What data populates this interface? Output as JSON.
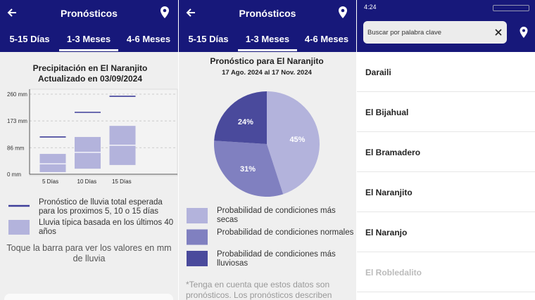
{
  "screens": [
    {
      "header": {
        "title": "Pronósticos"
      },
      "tabs": [
        "5-15 Días",
        "1-3 Meses",
        "4-6 Meses"
      ],
      "chart": {
        "type": "box",
        "title": "Precipitación en El Naranjito",
        "subtitle": "Actualizado en 03/09/2024",
        "categories": [
          "5 Días",
          "10 Días",
          "15 Días"
        ],
        "typical": {
          "low": [
            7,
            18,
            30
          ],
          "median": [
            34,
            71,
            94
          ],
          "high": [
            66,
            121,
            157
          ],
          "color": "#b3b3dc"
        },
        "forecast": {
          "values": [
            121,
            201,
            253
          ],
          "color": "#3f3f9a"
        },
        "ylim": [
          0,
          260
        ],
        "yticks": [
          {
            "value": 0,
            "label": "0 mm"
          },
          {
            "value": 86,
            "label": "86 mm"
          },
          {
            "value": 173,
            "label": "173 mm"
          },
          {
            "value": 260,
            "label": "260 mm"
          }
        ]
      },
      "legend": [
        "Pronóstico de lluvia total esperada para los proximos 5, 10 o 15 días",
        "Lluvia típica basada en los últimos 40 años"
      ],
      "note": "Toque la barra para ver los valores en mm de lluvia"
    },
    {
      "header": {
        "title": "Pronósticos"
      },
      "tabs": [
        "5-15 Días",
        "1-3 Meses",
        "4-6 Meses"
      ],
      "chart": {
        "type": "pie",
        "title": "Pronóstico para El Naranjito",
        "subtitle": "17 Ago. 2024 al 17 Nov. 2024",
        "categories": [
          "Probabilidad de condiciones más secas",
          "Probabilidad de condiciones normales",
          "Probabilidad de condiciones más lluviosas"
        ],
        "values": [
          45,
          31,
          24
        ],
        "value_labels": [
          "45%",
          "31%",
          "24%"
        ],
        "colors": [
          "#b3b3dc",
          "#8080c0",
          "#4a4a9c"
        ]
      },
      "footnote": "*Tenga en cuenta que estos datos son pronósticos. Los pronósticos describen"
    },
    {
      "status_time": "4:24",
      "search_placeholder": "Buscar por palabra clave",
      "items": [
        "Daraili",
        "El Bijahual",
        "El Bramadero",
        "El Naranjito",
        "El Naranjo",
        "El Robledalito"
      ]
    }
  ]
}
